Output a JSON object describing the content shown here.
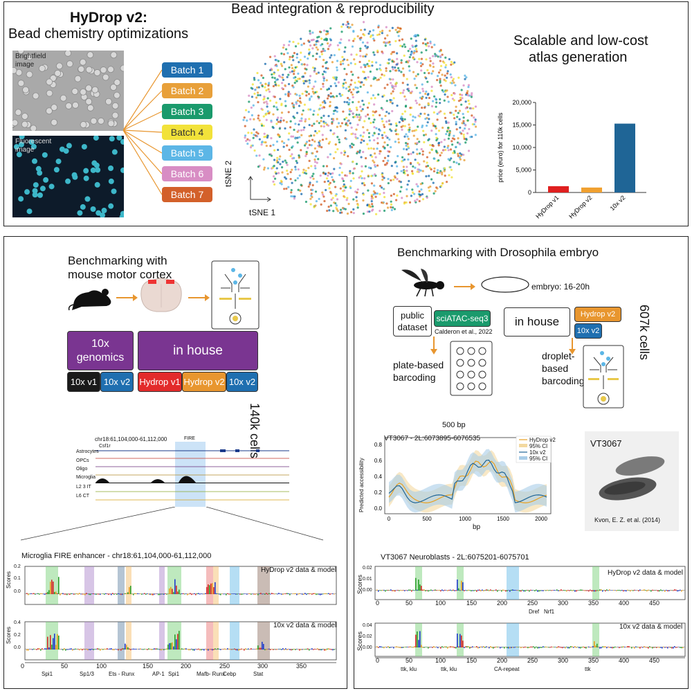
{
  "top": {
    "title_main": "HyDrop v2:",
    "title_sub": "Bead chemistry optimizations",
    "brightfield_label": "Brightfield\nimage",
    "fluorescent_label": "Fluorescent\nimage",
    "batches": [
      {
        "label": "Batch 1",
        "color": "#1f6fb0"
      },
      {
        "label": "Batch 2",
        "color": "#e8a03a"
      },
      {
        "label": "Batch 3",
        "color": "#1a9a6c"
      },
      {
        "label": "Batch 4",
        "color": "#f2e23a"
      },
      {
        "label": "Batch 5",
        "color": "#5cb6e6"
      },
      {
        "label": "Batch 6",
        "color": "#d88dc4"
      },
      {
        "label": "Batch 7",
        "color": "#d3602a"
      }
    ],
    "tsne_title": "Bead integration & reproducibility",
    "tsne_x": "tSNE 1",
    "tsne_y": "tSNE 2",
    "cost_title_1": "Scalable and low-cost",
    "cost_title_2": "atlas generation"
  },
  "chart_data": {
    "type": "bar",
    "categories": [
      "HyDrop v1",
      "HyDrop v2",
      "10x v2"
    ],
    "values": [
      1400,
      1100,
      15300
    ],
    "colors": [
      "#e02020",
      "#f0a030",
      "#1f6596"
    ],
    "ylabel": "price (euro) for 110k cells",
    "ylim": [
      0,
      20000
    ],
    "yticks": [
      "0",
      "5,000",
      "10,000",
      "15,000",
      "20,000"
    ]
  },
  "left": {
    "title_1": "Benchmarking with",
    "title_2": "mouse motor cortex",
    "box_10x": "10x\ngenomics",
    "box_inhouse": "in house",
    "cells": "140k cells",
    "sub": [
      {
        "label": "10x v1",
        "color": "#1a1a1a"
      },
      {
        "label": "10x v2",
        "color": "#1f6fb0"
      },
      {
        "label": "Hydrop v1",
        "color": "#e32b2b"
      },
      {
        "label": "Hydrop v2",
        "color": "#e8962f"
      },
      {
        "label": "10x v2",
        "color": "#1f6fb0"
      }
    ],
    "locus": "chr18:61,104,000-61,112,000",
    "gene": "Csf1r",
    "fire": "FIRE",
    "tracks": [
      "Astrocytes",
      "OPCs",
      "Oligo",
      "Microglia",
      "L2 3 IT",
      "L6 CT"
    ],
    "enh_title": "Microglia FIRE enhancer - chr18:61,104,000-61,112,000",
    "model_1": "HyDrop v2 data & model",
    "model_2": "10x v2 data & model",
    "scores": "Scores",
    "motifs": [
      "Spi1",
      "Sp1/3",
      "Ets - Runx",
      "AP-1",
      "Spi1",
      "Mafb- Runx",
      "Cebp",
      "Stat"
    ],
    "xticks": [
      "0",
      "50",
      "100",
      "150",
      "200",
      "250",
      "300",
      "350"
    ],
    "y1ticks": [
      "0.2",
      "0.1",
      "0.0"
    ],
    "y2ticks": [
      "0.4",
      "0.2",
      "0.0"
    ]
  },
  "right": {
    "title": "Benchmarking with Drosophila embryo",
    "embryo": "embryo: 16-20h",
    "public": "public\ndataset",
    "sciatac": "sciATAC-seq3",
    "calderon": "Calderon et al., 2022",
    "inhouse": "in house",
    "hydrop_v2": "Hydrop v2",
    "tenx_v2": "10x v2",
    "cells": "607k cells",
    "plate": "plate-based\nbarcoding",
    "droplet": "droplet-\nbased\nbarcoding",
    "bp500": "500 bp",
    "acc_title": "VT3067 - 2L:6073895-6076535",
    "acc_ylabel": "Predicted accessibility",
    "acc_xlabel": "bp",
    "legend": [
      "HyDrop v2",
      "95% CI",
      "10x v2",
      "95% CI"
    ],
    "acc_xticks": [
      "0",
      "500",
      "1000",
      "1500",
      "2000"
    ],
    "acc_yticks": [
      "0.8",
      "0.6",
      "0.4",
      "0.2",
      "0.0"
    ],
    "vt_label": "VT3067",
    "kvon": "Kvon, E. Z. et al. (2014)",
    "nb_title": "VT3067 Neuroblasts - 2L:6075201-6075701",
    "model_1": "HyDrop v2 data & model",
    "model_2": "10x v2 data & model",
    "scores": "Scores",
    "nb_xticks": [
      "0",
      "50",
      "100",
      "150",
      "200",
      "250",
      "300",
      "350",
      "400",
      "450"
    ],
    "nb1_yticks": [
      "0.02",
      "0.01",
      "0.00"
    ],
    "nb2_yticks": [
      "0.04",
      "0.02",
      "0.00"
    ],
    "mid_motifs": [
      "Dref",
      "Nrf1"
    ],
    "bottom_motifs": [
      "ttk, klu",
      "ttk, klu",
      "CA-repeat",
      "ttk"
    ]
  }
}
